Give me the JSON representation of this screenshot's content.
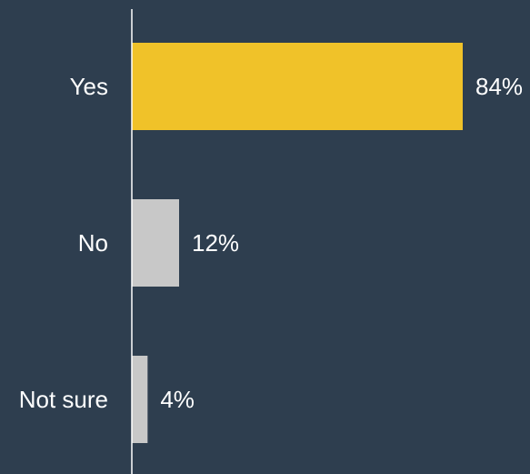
{
  "chart_data": {
    "type": "bar",
    "orientation": "horizontal",
    "categories": [
      "Yes",
      "No",
      "Not sure"
    ],
    "values": [
      84,
      12,
      4
    ],
    "value_labels": [
      "84%",
      "12%",
      "4%"
    ],
    "unit": "%",
    "xlim": [
      0,
      100
    ],
    "grid": false,
    "legend": "none",
    "colors": {
      "background": "#2e3e4f",
      "highlight": "#f0c229",
      "default": "#c8c8c8",
      "axis": "#ffffff",
      "text": "#ffffff"
    },
    "bar_colors": [
      "#f0c229",
      "#c8c8c8",
      "#c8c8c8"
    ]
  }
}
